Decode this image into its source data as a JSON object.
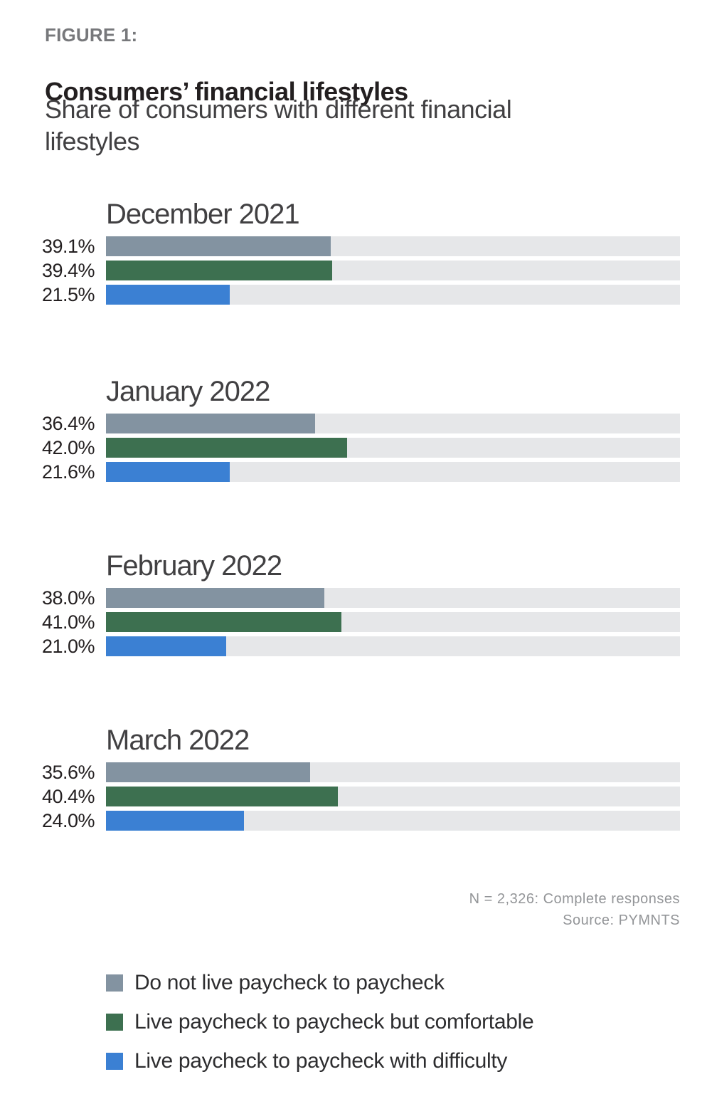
{
  "figure_label": "FIGURE 1:",
  "title": "Consumers’ financial lifestyles",
  "subtitle": "Share of consumers with different financial lifestyles",
  "footnote": {
    "line1": "N = 2,326: Complete responses",
    "line2": "Source: PYMNTS"
  },
  "colors": {
    "series": [
      "#8393a1",
      "#3d7050",
      "#3b80d3"
    ],
    "track": "#e6e7e9",
    "title_text": "#231f20",
    "muted_text": "#939598"
  },
  "chart_data": {
    "type": "bar",
    "orientation": "horizontal",
    "unit": "percent",
    "xlim": [
      0,
      100
    ],
    "grid": false,
    "legend_position": "bottom-left",
    "series_names": [
      "Do not live paycheck to paycheck",
      "Live paycheck to paycheck but comfortable",
      "Live paycheck to paycheck with difficulty"
    ],
    "groups": [
      {
        "label": "December 2021",
        "values": [
          39.1,
          39.4,
          21.5
        ],
        "display": [
          "39.1%",
          "39.4%",
          "21.5%"
        ]
      },
      {
        "label": "January 2022",
        "values": [
          36.4,
          42.0,
          21.6
        ],
        "display": [
          "36.4%",
          "42.0%",
          "21.6%"
        ]
      },
      {
        "label": "February 2022",
        "values": [
          38.0,
          41.0,
          21.0
        ],
        "display": [
          "38.0%",
          "41.0%",
          "21.0%"
        ]
      },
      {
        "label": "March 2022",
        "values": [
          35.6,
          40.4,
          24.0
        ],
        "display": [
          "35.6%",
          "40.4%",
          "24.0%"
        ]
      }
    ]
  }
}
